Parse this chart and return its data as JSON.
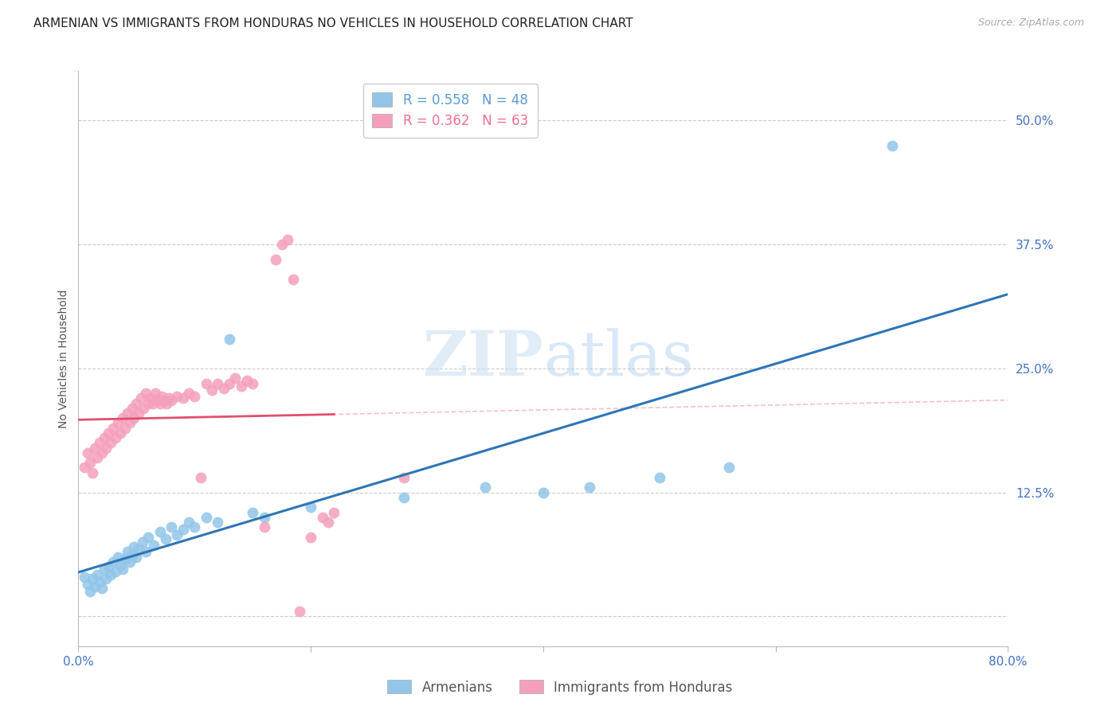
{
  "title": "ARMENIAN VS IMMIGRANTS FROM HONDURAS NO VEHICLES IN HOUSEHOLD CORRELATION CHART",
  "source": "Source: ZipAtlas.com",
  "ylabel_label": "No Vehicles in Household",
  "ytick_positions": [
    0.0,
    0.125,
    0.25,
    0.375,
    0.5
  ],
  "ytick_labels": [
    "",
    "12.5%",
    "25.0%",
    "37.5%",
    "50.0%"
  ],
  "xlim": [
    0.0,
    0.8
  ],
  "ylim": [
    -0.03,
    0.55
  ],
  "legend_entries": [
    {
      "label": "R = 0.558   N = 48",
      "color": "#5b9bd5"
    },
    {
      "label": "R = 0.362   N = 63",
      "color": "#f07090"
    }
  ],
  "legend_series": [
    "Armenians",
    "Immigrants from Honduras"
  ],
  "armenian_color": "#92c5e8",
  "honduran_color": "#f4a0bc",
  "armenian_line_color": "#2e75b6",
  "honduran_line_color": "#e05070",
  "background_color": "#ffffff",
  "grid_color": "#cccccc",
  "title_fontsize": 11,
  "axis_label_fontsize": 10,
  "tick_fontsize": 11,
  "axis_tick_color": "#4472c4",
  "armenian_scatter": [
    [
      0.005,
      0.04
    ],
    [
      0.008,
      0.032
    ],
    [
      0.01,
      0.025
    ],
    [
      0.012,
      0.038
    ],
    [
      0.014,
      0.03
    ],
    [
      0.016,
      0.042
    ],
    [
      0.018,
      0.035
    ],
    [
      0.02,
      0.028
    ],
    [
      0.022,
      0.048
    ],
    [
      0.024,
      0.038
    ],
    [
      0.026,
      0.05
    ],
    [
      0.028,
      0.042
    ],
    [
      0.03,
      0.055
    ],
    [
      0.032,
      0.045
    ],
    [
      0.034,
      0.06
    ],
    [
      0.036,
      0.052
    ],
    [
      0.038,
      0.048
    ],
    [
      0.04,
      0.058
    ],
    [
      0.042,
      0.065
    ],
    [
      0.044,
      0.055
    ],
    [
      0.046,
      0.062
    ],
    [
      0.048,
      0.07
    ],
    [
      0.05,
      0.06
    ],
    [
      0.052,
      0.068
    ],
    [
      0.055,
      0.075
    ],
    [
      0.058,
      0.065
    ],
    [
      0.06,
      0.08
    ],
    [
      0.065,
      0.072
    ],
    [
      0.07,
      0.085
    ],
    [
      0.075,
      0.078
    ],
    [
      0.08,
      0.09
    ],
    [
      0.085,
      0.082
    ],
    [
      0.09,
      0.088
    ],
    [
      0.095,
      0.095
    ],
    [
      0.1,
      0.09
    ],
    [
      0.11,
      0.1
    ],
    [
      0.12,
      0.095
    ],
    [
      0.13,
      0.28
    ],
    [
      0.15,
      0.105
    ],
    [
      0.16,
      0.1
    ],
    [
      0.2,
      0.11
    ],
    [
      0.28,
      0.12
    ],
    [
      0.35,
      0.13
    ],
    [
      0.4,
      0.125
    ],
    [
      0.44,
      0.13
    ],
    [
      0.5,
      0.14
    ],
    [
      0.56,
      0.15
    ],
    [
      0.7,
      0.475
    ]
  ],
  "honduran_scatter": [
    [
      0.005,
      0.15
    ],
    [
      0.008,
      0.165
    ],
    [
      0.01,
      0.155
    ],
    [
      0.012,
      0.145
    ],
    [
      0.014,
      0.17
    ],
    [
      0.016,
      0.16
    ],
    [
      0.018,
      0.175
    ],
    [
      0.02,
      0.165
    ],
    [
      0.022,
      0.18
    ],
    [
      0.024,
      0.17
    ],
    [
      0.026,
      0.185
    ],
    [
      0.028,
      0.175
    ],
    [
      0.03,
      0.19
    ],
    [
      0.032,
      0.18
    ],
    [
      0.034,
      0.195
    ],
    [
      0.036,
      0.185
    ],
    [
      0.038,
      0.2
    ],
    [
      0.04,
      0.19
    ],
    [
      0.042,
      0.205
    ],
    [
      0.044,
      0.195
    ],
    [
      0.046,
      0.21
    ],
    [
      0.048,
      0.2
    ],
    [
      0.05,
      0.215
    ],
    [
      0.052,
      0.205
    ],
    [
      0.054,
      0.22
    ],
    [
      0.056,
      0.21
    ],
    [
      0.058,
      0.225
    ],
    [
      0.06,
      0.215
    ],
    [
      0.062,
      0.22
    ],
    [
      0.064,
      0.215
    ],
    [
      0.066,
      0.225
    ],
    [
      0.068,
      0.218
    ],
    [
      0.07,
      0.215
    ],
    [
      0.072,
      0.222
    ],
    [
      0.074,
      0.218
    ],
    [
      0.076,
      0.215
    ],
    [
      0.078,
      0.22
    ],
    [
      0.08,
      0.218
    ],
    [
      0.085,
      0.222
    ],
    [
      0.09,
      0.22
    ],
    [
      0.095,
      0.225
    ],
    [
      0.1,
      0.222
    ],
    [
      0.105,
      0.14
    ],
    [
      0.11,
      0.235
    ],
    [
      0.115,
      0.228
    ],
    [
      0.12,
      0.235
    ],
    [
      0.125,
      0.23
    ],
    [
      0.13,
      0.235
    ],
    [
      0.135,
      0.24
    ],
    [
      0.14,
      0.232
    ],
    [
      0.145,
      0.238
    ],
    [
      0.15,
      0.235
    ],
    [
      0.16,
      0.09
    ],
    [
      0.17,
      0.36
    ],
    [
      0.175,
      0.375
    ],
    [
      0.18,
      0.38
    ],
    [
      0.185,
      0.34
    ],
    [
      0.19,
      0.005
    ],
    [
      0.2,
      0.08
    ],
    [
      0.21,
      0.1
    ],
    [
      0.215,
      0.095
    ],
    [
      0.22,
      0.105
    ],
    [
      0.28,
      0.14
    ]
  ]
}
